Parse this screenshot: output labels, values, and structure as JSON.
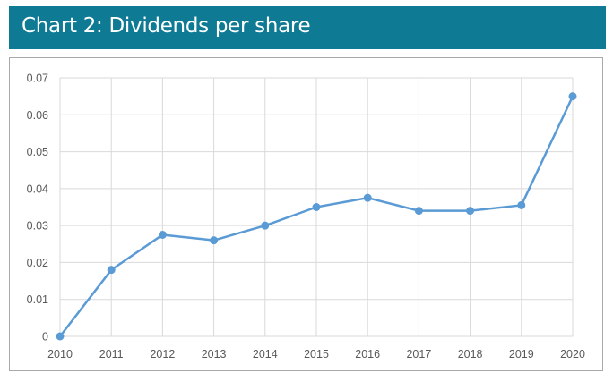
{
  "header": {
    "title": "Chart 2: Dividends per share"
  },
  "colors": {
    "header_bg": "#0e7a93",
    "series": "#5b9bd5",
    "grid": "#d9d9d9"
  },
  "chart_data": {
    "type": "line",
    "title": "Chart 2: Dividends per share",
    "xlabel": "",
    "ylabel": "",
    "categories": [
      "2010",
      "2011",
      "2012",
      "2013",
      "2014",
      "2015",
      "2016",
      "2017",
      "2018",
      "2019",
      "2020"
    ],
    "series": [
      {
        "name": "Dividends per share",
        "values": [
          0,
          0.018,
          0.0275,
          0.026,
          0.03,
          0.035,
          0.0375,
          0.034,
          0.034,
          0.0355,
          0.065
        ]
      }
    ],
    "ylim": [
      0,
      0.07
    ],
    "yticks": [
      "0",
      "0.01",
      "0.02",
      "0.03",
      "0.04",
      "0.05",
      "0.06",
      "0.07"
    ],
    "grid": true,
    "legend": "none"
  }
}
